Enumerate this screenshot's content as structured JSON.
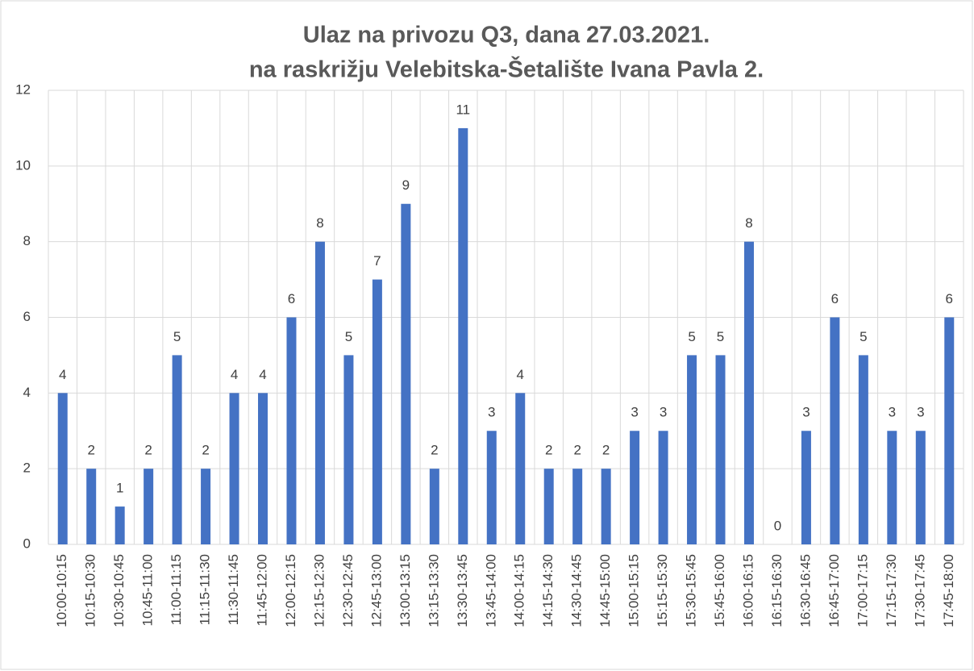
{
  "chart_data": {
    "type": "bar",
    "title": [
      "Ulaz na privozu Q3, dana 27.03.2021.",
      "na raskrižju Velebitska-Šetalište Ivana Pavla 2."
    ],
    "categories": [
      "10:00-10:15",
      "10:15-10:30",
      "10:30-10:45",
      "10:45-11:00",
      "11:00-11:15",
      "11:15-11:30",
      "11:30-11:45",
      "11:45-12:00",
      "12:00-12:15",
      "12:15-12:30",
      "12:30-12:45",
      "12:45-13:00",
      "13:00-13:15",
      "13:15-13:30",
      "13:30-13:45",
      "13:45-14:00",
      "14:00-14:15",
      "14:15-14:30",
      "14:30-14:45",
      "14:45-15:00",
      "15:00-15:15",
      "15:15-15:30",
      "15:30-15:45",
      "15:45-16:00",
      "16:00-16:15",
      "16:15-16:30",
      "16:30-16:45",
      "16:45-17:00",
      "17:00-17:15",
      "17:15-17:30",
      "17:30-17:45",
      "17:45-18:00"
    ],
    "values": [
      4,
      2,
      1,
      2,
      5,
      2,
      4,
      4,
      6,
      8,
      5,
      7,
      9,
      2,
      11,
      3,
      4,
      2,
      2,
      2,
      3,
      3,
      5,
      5,
      8,
      0,
      3,
      6,
      5,
      3,
      3,
      6
    ],
    "color": "#4472c4",
    "ylim": [
      0,
      12
    ],
    "yticks": [
      0,
      2,
      4,
      6,
      8,
      10,
      12
    ],
    "grid": true
  }
}
